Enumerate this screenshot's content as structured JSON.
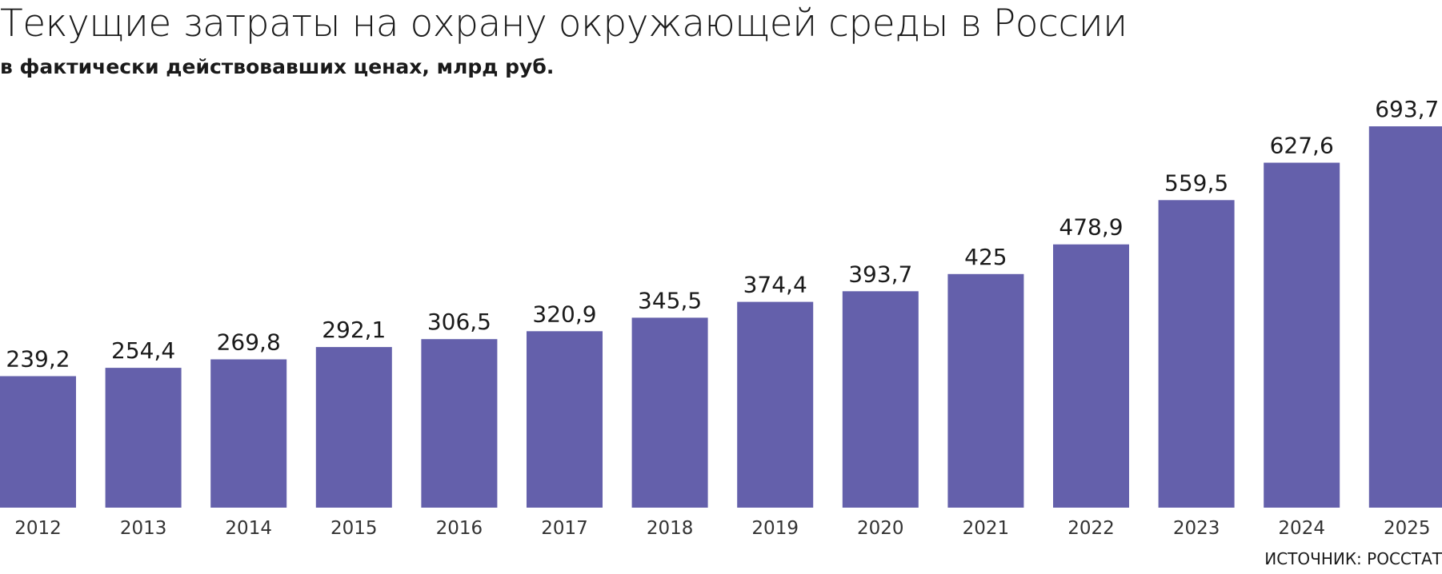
{
  "chart_data": {
    "type": "bar",
    "title": "Текущие затраты на охрану окружающей среды в России",
    "subtitle": "в фактически действовавших ценах, млрд руб.",
    "categories": [
      "2012",
      "2013",
      "2014",
      "2015",
      "2016",
      "2017",
      "2018",
      "2019",
      "2020",
      "2021",
      "2022",
      "2023",
      "2024",
      "2025"
    ],
    "values": [
      239.2,
      254.4,
      269.8,
      292.1,
      306.5,
      320.9,
      345.5,
      374.4,
      393.7,
      425,
      478.9,
      559.5,
      627.6,
      693.7
    ],
    "value_labels": [
      "239,2",
      "254,4",
      "269,8",
      "292,1",
      "306,5",
      "320,9",
      "345,5",
      "374,4",
      "393,7",
      "425",
      "478,9",
      "559,5",
      "627,6",
      "693,7"
    ],
    "xlabel": "",
    "ylabel": "",
    "ylim": [
      0,
      693.7
    ],
    "grid": false,
    "legend": "none",
    "bar_color": "#6460ab",
    "source": "ИСТОЧНИК: РОССТАТ"
  }
}
